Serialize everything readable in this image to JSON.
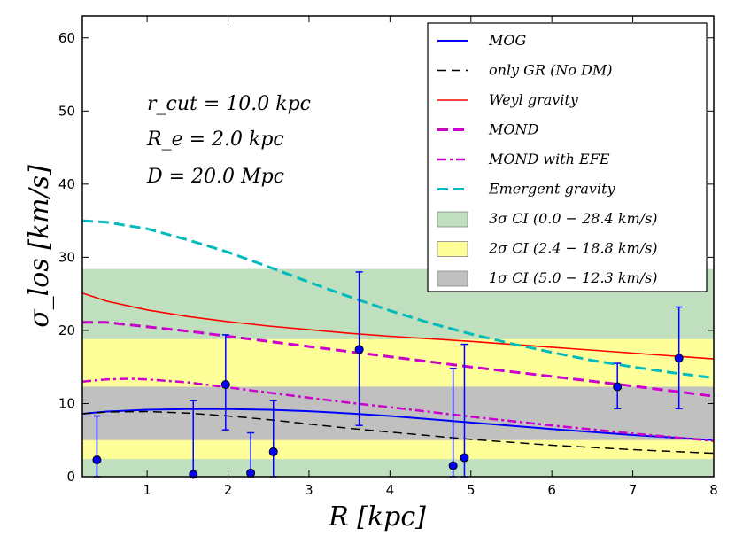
{
  "chart_data": {
    "type": "line",
    "title": "",
    "xlabel": "R [kpc]",
    "ylabel": "σ_los [km/s]",
    "xlim": [
      0.2,
      8
    ],
    "ylim": [
      0,
      63
    ],
    "xticks": [
      1,
      2,
      3,
      4,
      5,
      6,
      7,
      8
    ],
    "yticks": [
      0,
      10,
      20,
      30,
      40,
      50,
      60
    ],
    "annotations": [
      "r_cut = 10.0 kpc",
      "R_e = 2.0 kpc",
      "D = 20.0 Mpc"
    ],
    "bands": [
      {
        "name": "3σ CI (0.0 − 28.4 km/s)",
        "low": 0.0,
        "high": 28.4,
        "color": "#bfdfbf"
      },
      {
        "name": "2σ CI (2.4 − 18.8 km/s)",
        "low": 2.4,
        "high": 18.8,
        "color": "#ffff99"
      },
      {
        "name": "1σ CI (5.0 − 12.3 km/s)",
        "low": 5.0,
        "high": 12.3,
        "color": "#c0c0c0"
      }
    ],
    "series": [
      {
        "name": "MOG",
        "color": "#0000ff",
        "style": "solid",
        "x": [
          0.2,
          0.5,
          1.0,
          1.5,
          2.0,
          2.5,
          3.0,
          3.5,
          4.0,
          5.0,
          6.0,
          7.0,
          8.0
        ],
        "y": [
          8.6,
          8.9,
          9.15,
          9.25,
          9.25,
          9.15,
          8.95,
          8.65,
          8.3,
          7.4,
          6.5,
          5.7,
          5.0
        ]
      },
      {
        "name": "only GR (No DM)",
        "color": "#000000",
        "style": "dashed",
        "x": [
          0.2,
          0.5,
          1.0,
          1.5,
          2.0,
          2.5,
          3.0,
          3.5,
          4.0,
          5.0,
          6.0,
          7.0,
          8.0
        ],
        "y": [
          8.6,
          8.85,
          8.9,
          8.7,
          8.3,
          7.8,
          7.2,
          6.6,
          6.1,
          5.1,
          4.3,
          3.7,
          3.2
        ]
      },
      {
        "name": "Weyl gravity",
        "color": "#ff0000",
        "style": "solid",
        "x": [
          0.2,
          0.5,
          1.0,
          1.5,
          2.0,
          2.5,
          3.0,
          3.5,
          4.0,
          5.0,
          6.0,
          7.0,
          8.0
        ],
        "y": [
          25.1,
          24.0,
          22.8,
          21.9,
          21.2,
          20.6,
          20.1,
          19.6,
          19.2,
          18.5,
          17.7,
          16.9,
          16.1
        ]
      },
      {
        "name": "MOND",
        "color": "#cc00cc",
        "style": "dashed-thick",
        "x": [
          0.2,
          0.5,
          1.0,
          1.5,
          2.0,
          2.5,
          3.0,
          3.5,
          4.0,
          5.0,
          6.0,
          7.0,
          8.0
        ],
        "y": [
          21.1,
          21.1,
          20.5,
          19.9,
          19.2,
          18.5,
          17.8,
          17.1,
          16.4,
          15.0,
          13.7,
          12.4,
          11.0
        ]
      },
      {
        "name": "MOND with EFE",
        "color": "#cc00cc",
        "style": "dashdot",
        "x": [
          0.2,
          0.5,
          0.8,
          1.0,
          1.5,
          2.0,
          2.5,
          3.0,
          3.5,
          4.0,
          5.0,
          6.0,
          7.0,
          8.0
        ],
        "y": [
          13.0,
          13.3,
          13.4,
          13.3,
          12.9,
          12.2,
          11.5,
          10.8,
          10.1,
          9.5,
          8.2,
          7.0,
          5.9,
          4.9
        ]
      },
      {
        "name": "Emergent gravity",
        "color": "#00bbbb",
        "style": "dashed-thick",
        "x": [
          0.2,
          0.5,
          1.0,
          1.5,
          2.0,
          2.5,
          3.0,
          3.5,
          4.0,
          4.5,
          5.0,
          5.5,
          6.0,
          6.5,
          7.0,
          7.5,
          8.0
        ],
        "y": [
          35.0,
          34.8,
          33.9,
          32.4,
          30.7,
          28.7,
          26.6,
          24.6,
          22.7,
          21.0,
          19.5,
          18.2,
          17.0,
          15.9,
          15.0,
          14.2,
          13.5
        ]
      }
    ],
    "data_points": {
      "name": "observed",
      "x": [
        0.38,
        1.57,
        1.97,
        2.28,
        2.56,
        3.62,
        4.78,
        4.92,
        6.81,
        7.57
      ],
      "y": [
        2.3,
        0.3,
        12.6,
        0.5,
        3.4,
        17.4,
        1.5,
        2.6,
        12.3,
        16.2
      ],
      "yerr_low": [
        2.3,
        0.3,
        6.2,
        0.5,
        3.4,
        10.4,
        1.5,
        2.6,
        3.0,
        6.9
      ],
      "yerr_high": [
        6.0,
        10.1,
        6.8,
        5.5,
        7.0,
        10.6,
        13.3,
        15.5,
        3.2,
        7.0
      ],
      "marker_color": "#0000ff",
      "error_color": "#0000ff"
    },
    "legend_placement": "top-right",
    "grid": false
  }
}
